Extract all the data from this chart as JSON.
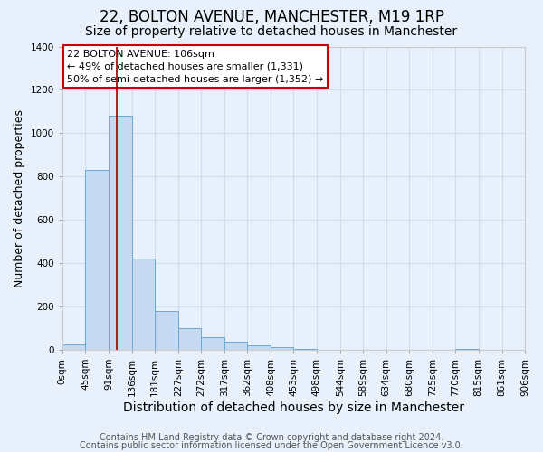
{
  "title": "22, BOLTON AVENUE, MANCHESTER, M19 1RP",
  "subtitle": "Size of property relative to detached houses in Manchester",
  "xlabel": "Distribution of detached houses by size in Manchester",
  "ylabel": "Number of detached properties",
  "bar_values": [
    25,
    830,
    1080,
    420,
    180,
    100,
    57,
    37,
    20,
    10,
    5,
    0,
    0,
    0,
    0,
    0,
    0,
    5,
    0,
    0
  ],
  "bin_edges": [
    0,
    45,
    91,
    136,
    181,
    227,
    272,
    317,
    362,
    408,
    453,
    498,
    544,
    589,
    634,
    680,
    725,
    770,
    815,
    861,
    906
  ],
  "tick_labels": [
    "0sqm",
    "45sqm",
    "91sqm",
    "136sqm",
    "181sqm",
    "227sqm",
    "272sqm",
    "317sqm",
    "362sqm",
    "408sqm",
    "453sqm",
    "498sqm",
    "544sqm",
    "589sqm",
    "634sqm",
    "680sqm",
    "725sqm",
    "770sqm",
    "815sqm",
    "861sqm",
    "906sqm"
  ],
  "bar_color": "#c5d9f0",
  "bar_edge_color": "#6aaad4",
  "background_color": "#e8f0fb",
  "grid_color": "#d0daf0",
  "red_line_x": 106,
  "annotation_title": "22 BOLTON AVENUE: 106sqm",
  "annotation_line1": "← 49% of detached houses are smaller (1,331)",
  "annotation_line2": "50% of semi-detached houses are larger (1,352) →",
  "annotation_box_color": "#ffffff",
  "annotation_box_edge": "#cc0000",
  "ylim": [
    0,
    1400
  ],
  "yticks": [
    0,
    200,
    400,
    600,
    800,
    1000,
    1200,
    1400
  ],
  "footer1": "Contains HM Land Registry data © Crown copyright and database right 2024.",
  "footer2": "Contains public sector information licensed under the Open Government Licence v3.0.",
  "title_fontsize": 12,
  "subtitle_fontsize": 10,
  "xlabel_fontsize": 10,
  "ylabel_fontsize": 9,
  "tick_fontsize": 7.5,
  "annotation_fontsize": 8,
  "footer_fontsize": 7
}
